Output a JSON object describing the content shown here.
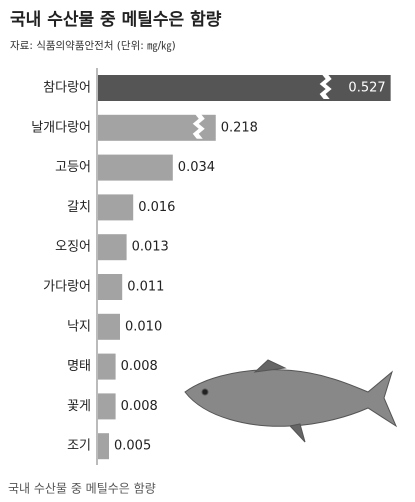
{
  "chart_data": {
    "type": "bar",
    "orientation": "horizontal",
    "title": "국내 수산물 중 메틸수은 함량",
    "subtitle": "자료: 식품의약품안전처 (단위: ㎎/㎏)",
    "caption": "국내 수산물 중 메틸수은 함량",
    "categories": [
      "참다랑어",
      "날개다랑어",
      "고등어",
      "갈치",
      "오징어",
      "가다랑어",
      "낙지",
      "명태",
      "꽃게",
      "조기"
    ],
    "values": [
      0.527,
      0.218,
      0.034,
      0.016,
      0.013,
      0.011,
      0.01,
      0.008,
      0.008,
      0.005
    ],
    "value_labels": [
      "0.527",
      "0.218",
      "0.034",
      "0.016",
      "0.013",
      "0.011",
      "0.010",
      "0.008",
      "0.008",
      "0.005"
    ],
    "colors": [
      "#555555",
      "#a3a3a3",
      "#a3a3a3",
      "#a3a3a3",
      "#a3a3a3",
      "#a3a3a3",
      "#a3a3a3",
      "#a3a3a3",
      "#a3a3a3",
      "#a3a3a3"
    ]
  }
}
